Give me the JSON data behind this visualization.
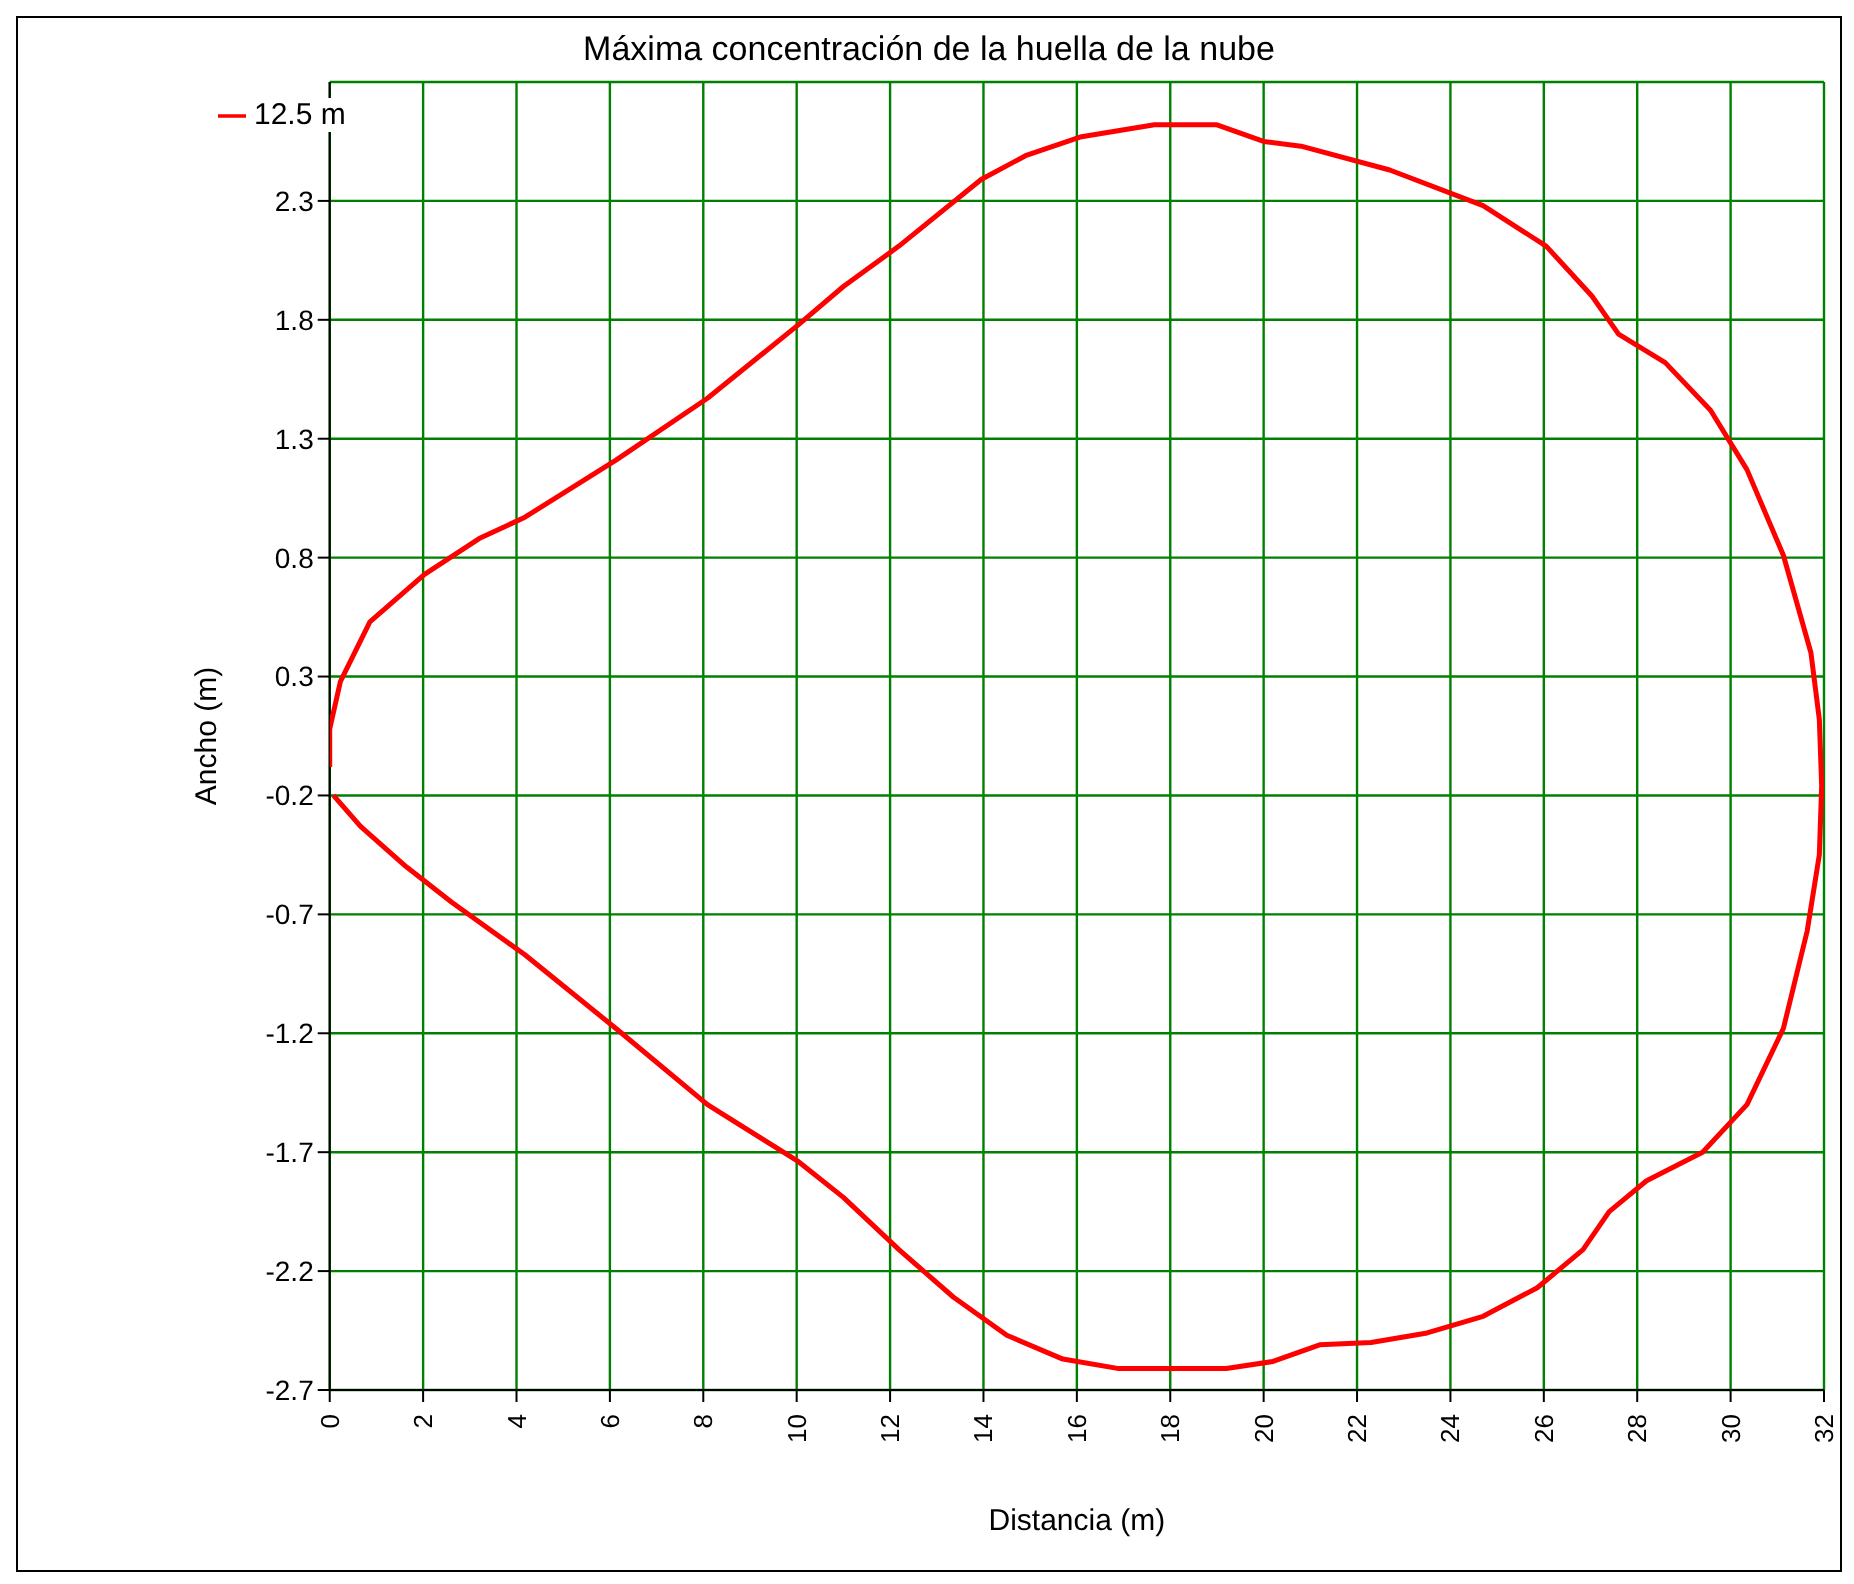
{
  "chart_data": {
    "type": "line",
    "title": "Máxima concentración de la huella de la nube",
    "xlabel": "Distancia (m)",
    "ylabel": "Ancho (m)",
    "xlim": [
      0,
      32
    ],
    "xticks": [
      0,
      2,
      4,
      6,
      8,
      10,
      12,
      14,
      16,
      18,
      20,
      22,
      24,
      26,
      28,
      30,
      32
    ],
    "ylim": [
      -2.7,
      2.8
    ],
    "yticks": [
      -2.7,
      -2.2,
      -1.7,
      -1.2,
      -0.7,
      -0.2,
      0.3,
      0.8,
      1.3,
      1.8,
      2.3
    ],
    "grid": true,
    "legend": "top left",
    "marker": "none",
    "line_style": "solid",
    "series": [
      {
        "name": "12.5 m",
        "color": "#ff0000",
        "x": [
          0,
          0,
          0.23,
          0.86,
          2.03,
          3.2,
          4.18,
          6.13,
          8.09,
          10.04,
          11.0,
          12.19,
          13.95,
          14.9,
          16.1,
          17.66,
          19.0,
          20.0,
          20.8,
          22.7,
          24.7,
          26.05,
          27.03,
          27.6,
          28.6,
          29.57,
          30.35,
          31.13,
          31.72,
          31.9,
          31.95,
          31.9,
          31.64,
          31.13,
          30.35,
          29.4,
          28.2,
          27.4,
          26.84,
          25.86,
          24.7,
          23.5,
          22.3,
          21.2,
          20.2,
          19.2,
          16.9,
          15.7,
          14.5,
          13.36,
          12.19,
          11.0,
          10.04,
          8.09,
          6.13,
          4.18,
          2.62,
          1.64,
          0.66,
          0.08
        ],
        "values": [
          -0.08,
          0.08,
          0.28,
          0.53,
          0.73,
          0.88,
          0.97,
          1.21,
          1.47,
          1.78,
          1.94,
          2.11,
          2.39,
          2.49,
          2.57,
          2.62,
          2.62,
          2.55,
          2.53,
          2.43,
          2.28,
          2.11,
          1.9,
          1.74,
          1.62,
          1.42,
          1.17,
          0.81,
          0.4,
          0.12,
          -0.16,
          -0.45,
          -0.77,
          -1.18,
          -1.5,
          -1.7,
          -1.82,
          -1.95,
          -2.11,
          -2.27,
          -2.39,
          -2.46,
          -2.5,
          -2.51,
          -2.58,
          -2.61,
          -2.61,
          -2.57,
          -2.47,
          -2.31,
          -2.11,
          -1.89,
          -1.74,
          -1.5,
          -1.18,
          -0.87,
          -0.65,
          -0.5,
          -0.33,
          -0.2
        ]
      }
    ]
  }
}
